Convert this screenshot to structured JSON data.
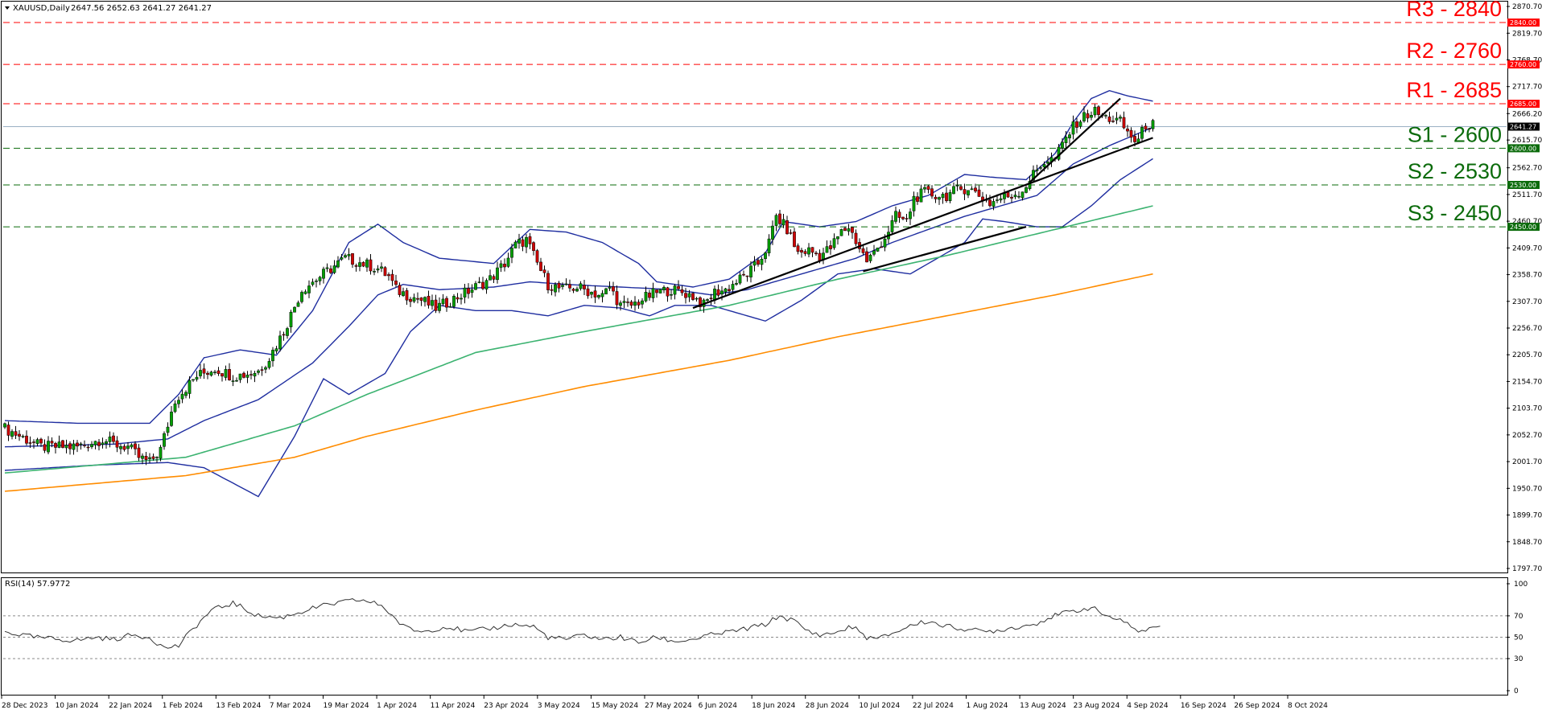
{
  "header": {
    "symbol": "XAUUSD,Daily",
    "ohlc": "2647.56 2652.63 2641.27 2641.27"
  },
  "rsi_header": "RSI(14) 57.9772",
  "colors": {
    "up_candle": "#00a000",
    "down_candle": "#d00000",
    "resistance": "#ff0000",
    "support": "#0b6b0b",
    "bollinger": "#1f2ea0",
    "ma_green": "#3cb371",
    "ma_orange": "#ff8c00",
    "trendline": "#000000",
    "rsi_line": "#333333"
  },
  "levels": [
    {
      "label": "R3 - 2840",
      "price": 2840,
      "tag": "2840.00",
      "kind": "resistance"
    },
    {
      "label": "R2 - 2760",
      "price": 2760,
      "tag": "2760.00",
      "kind": "resistance"
    },
    {
      "label": "R1 - 2685",
      "price": 2685,
      "tag": "2685.00",
      "kind": "resistance"
    },
    {
      "label": "S1 - 2600",
      "price": 2600,
      "tag": "2600.00",
      "kind": "support"
    },
    {
      "label": "S2 - 2530",
      "price": 2530,
      "tag": "2530.00",
      "kind": "support"
    },
    {
      "label": "S3 - 2450",
      "price": 2450,
      "tag": "2450.00",
      "kind": "support"
    }
  ],
  "current_price": {
    "price": 2641.27,
    "tag": "2641.27"
  },
  "chart_data": [
    {
      "type": "candlestick",
      "x_ticks": [
        "28 Dec 2023",
        "10 Jan 2024",
        "22 Jan 2024",
        "1 Feb 2024",
        "13 Feb 2024",
        "7 Mar 2024",
        "19 Mar 2024",
        "1 Apr 2024",
        "11 Apr 2024",
        "23 Apr 2024",
        "3 May 2024",
        "15 May 2024",
        "27 May 2024",
        "6 Jun 2024",
        "18 Jun 2024",
        "28 Jun 2024",
        "10 Jul 2024",
        "22 Jul 2024",
        "1 Aug 2024",
        "13 Aug 2024",
        "23 Aug 2024",
        "4 Sep 2024",
        "16 Sep 2024",
        "26 Sep 2024",
        "8 Oct 2024"
      ],
      "y_ticks": [
        "2870.70",
        "2819.70",
        "2768.70",
        "2717.70",
        "2666.20",
        "2615.70",
        "2562.70",
        "2511.70",
        "2460.70",
        "2409.70",
        "2358.70",
        "2307.70",
        "2256.70",
        "2205.70",
        "2154.70",
        "2103.70",
        "2052.70",
        "2001.70",
        "1950.70",
        "1899.70",
        "1848.70",
        "1797.70"
      ],
      "ylim": [
        1790,
        2880
      ],
      "close_anchors": [
        [
          0,
          2065
        ],
        [
          10,
          2030
        ],
        [
          20,
          2030
        ],
        [
          27,
          2045
        ],
        [
          30,
          2035
        ],
        [
          34,
          2030
        ],
        [
          37,
          2010
        ],
        [
          40,
          2000
        ],
        [
          43,
          2025
        ],
        [
          47,
          2120
        ],
        [
          53,
          2165
        ],
        [
          58,
          2180
        ],
        [
          63,
          2165
        ],
        [
          66,
          2168
        ],
        [
          70,
          2175
        ],
        [
          73,
          2200
        ],
        [
          77,
          2250
        ],
        [
          82,
          2330
        ],
        [
          86,
          2350
        ],
        [
          90,
          2370
        ],
        [
          94,
          2390
        ],
        [
          99,
          2380
        ],
        [
          103,
          2370
        ],
        [
          106,
          2355
        ],
        [
          108,
          2330
        ],
        [
          111,
          2320
        ],
        [
          115,
          2310
        ],
        [
          119,
          2295
        ],
        [
          122,
          2305
        ],
        [
          126,
          2320
        ],
        [
          130,
          2335
        ],
        [
          134,
          2350
        ],
        [
          138,
          2380
        ],
        [
          141,
          2415
        ],
        [
          144,
          2425
        ],
        [
          147,
          2380
        ],
        [
          150,
          2340
        ],
        [
          154,
          2330
        ],
        [
          158,
          2335
        ],
        [
          162,
          2325
        ],
        [
          165,
          2318
        ],
        [
          167,
          2335
        ],
        [
          170,
          2300
        ],
        [
          173,
          2300
        ],
        [
          177,
          2315
        ],
        [
          180,
          2325
        ],
        [
          184,
          2330
        ],
        [
          187,
          2325
        ],
        [
          190,
          2318
        ],
        [
          193,
          2300
        ],
        [
          196,
          2325
        ],
        [
          199,
          2330
        ],
        [
          202,
          2345
        ],
        [
          205,
          2360
        ],
        [
          208,
          2380
        ],
        [
          211,
          2420
        ],
        [
          213,
          2470
        ],
        [
          216,
          2445
        ],
        [
          219,
          2400
        ],
        [
          222,
          2405
        ],
        [
          225,
          2395
        ],
        [
          228,
          2410
        ],
        [
          231,
          2440
        ],
        [
          233,
          2450
        ],
        [
          236,
          2410
        ],
        [
          238,
          2385
        ],
        [
          240,
          2400
        ],
        [
          243,
          2430
        ],
        [
          246,
          2470
        ],
        [
          249,
          2460
        ],
        [
          251,
          2505
        ],
        [
          254,
          2515
        ],
        [
          257,
          2510
        ],
        [
          260,
          2510
        ],
        [
          263,
          2520
        ],
        [
          266,
          2525
        ],
        [
          269,
          2510
        ],
        [
          272,
          2495
        ],
        [
          275,
          2505
        ],
        [
          278,
          2510
        ],
        [
          281,
          2520
        ],
        [
          284,
          2550
        ],
        [
          287,
          2575
        ],
        [
          290,
          2580
        ],
        [
          293,
          2620
        ],
        [
          296,
          2650
        ],
        [
          299,
          2665
        ],
        [
          301,
          2670
        ],
        [
          303,
          2660
        ],
        [
          306,
          2655
        ],
        [
          308,
          2650
        ],
        [
          310,
          2630
        ],
        [
          312,
          2615
        ],
        [
          313,
          2615
        ],
        [
          315,
          2645
        ],
        [
          317,
          2645
        ]
      ],
      "bb_upper": [
        [
          0,
          2080
        ],
        [
          20,
          2075
        ],
        [
          40,
          2075
        ],
        [
          48,
          2130
        ],
        [
          55,
          2200
        ],
        [
          65,
          2215
        ],
        [
          75,
          2205
        ],
        [
          85,
          2290
        ],
        [
          95,
          2420
        ],
        [
          103,
          2455
        ],
        [
          110,
          2420
        ],
        [
          120,
          2390
        ],
        [
          135,
          2380
        ],
        [
          145,
          2445
        ],
        [
          155,
          2440
        ],
        [
          165,
          2420
        ],
        [
          175,
          2380
        ],
        [
          180,
          2345
        ],
        [
          190,
          2335
        ],
        [
          200,
          2350
        ],
        [
          210,
          2400
        ],
        [
          215,
          2460
        ],
        [
          225,
          2450
        ],
        [
          235,
          2460
        ],
        [
          245,
          2490
        ],
        [
          255,
          2510
        ],
        [
          265,
          2550
        ],
        [
          272,
          2545
        ],
        [
          282,
          2540
        ],
        [
          290,
          2590
        ],
        [
          295,
          2650
        ],
        [
          300,
          2695
        ],
        [
          305,
          2710
        ],
        [
          310,
          2700
        ],
        [
          317,
          2690
        ]
      ],
      "bb_middle": [
        [
          0,
          2030
        ],
        [
          30,
          2035
        ],
        [
          45,
          2045
        ],
        [
          55,
          2080
        ],
        [
          70,
          2120
        ],
        [
          85,
          2190
        ],
        [
          95,
          2260
        ],
        [
          103,
          2320
        ],
        [
          110,
          2340
        ],
        [
          120,
          2330
        ],
        [
          135,
          2335
        ],
        [
          145,
          2345
        ],
        [
          155,
          2340
        ],
        [
          170,
          2335
        ],
        [
          185,
          2330
        ],
        [
          195,
          2320
        ],
        [
          205,
          2330
        ],
        [
          215,
          2350
        ],
        [
          225,
          2370
        ],
        [
          235,
          2390
        ],
        [
          245,
          2420
        ],
        [
          255,
          2445
        ],
        [
          265,
          2470
        ],
        [
          275,
          2490
        ],
        [
          285,
          2510
        ],
        [
          295,
          2570
        ],
        [
          305,
          2605
        ],
        [
          317,
          2640
        ]
      ],
      "bb_lower": [
        [
          0,
          1985
        ],
        [
          25,
          1995
        ],
        [
          45,
          2000
        ],
        [
          55,
          1990
        ],
        [
          70,
          1935
        ],
        [
          80,
          2050
        ],
        [
          88,
          2160
        ],
        [
          95,
          2130
        ],
        [
          105,
          2170
        ],
        [
          112,
          2250
        ],
        [
          120,
          2300
        ],
        [
          130,
          2290
        ],
        [
          140,
          2290
        ],
        [
          150,
          2280
        ],
        [
          160,
          2300
        ],
        [
          170,
          2295
        ],
        [
          178,
          2280
        ],
        [
          185,
          2300
        ],
        [
          195,
          2300
        ],
        [
          210,
          2270
        ],
        [
          220,
          2310
        ],
        [
          230,
          2360
        ],
        [
          240,
          2370
        ],
        [
          250,
          2360
        ],
        [
          255,
          2380
        ],
        [
          265,
          2420
        ],
        [
          270,
          2465
        ],
        [
          276,
          2460
        ],
        [
          285,
          2450
        ],
        [
          292,
          2450
        ],
        [
          300,
          2490
        ],
        [
          308,
          2540
        ],
        [
          317,
          2580
        ]
      ],
      "ma_green": [
        [
          0,
          1980
        ],
        [
          50,
          2010
        ],
        [
          80,
          2070
        ],
        [
          100,
          2130
        ],
        [
          130,
          2210
        ],
        [
          160,
          2250
        ],
        [
          200,
          2300
        ],
        [
          230,
          2350
        ],
        [
          260,
          2395
        ],
        [
          290,
          2445
        ],
        [
          317,
          2490
        ]
      ],
      "ma_orange": [
        [
          0,
          1945
        ],
        [
          50,
          1975
        ],
        [
          80,
          2010
        ],
        [
          100,
          2050
        ],
        [
          130,
          2100
        ],
        [
          160,
          2145
        ],
        [
          200,
          2195
        ],
        [
          230,
          2240
        ],
        [
          260,
          2280
        ],
        [
          290,
          2320
        ],
        [
          317,
          2360
        ]
      ],
      "trendlines": [
        [
          [
            190,
            2295
          ],
          [
            317,
            2620
          ]
        ],
        [
          [
            237,
            2365
          ],
          [
            282,
            2450
          ]
        ],
        [
          [
            283,
            2535
          ],
          [
            308,
            2695
          ]
        ]
      ]
    },
    {
      "type": "line",
      "title": "RSI(14) 57.9772",
      "y_ticks": [
        "100",
        "70",
        "50",
        "30",
        "0"
      ],
      "ylim": [
        0,
        100
      ],
      "levels": [
        70,
        50,
        30
      ],
      "values_anchors": [
        [
          0,
          55
        ],
        [
          8,
          50
        ],
        [
          15,
          48
        ],
        [
          20,
          47
        ],
        [
          25,
          50
        ],
        [
          30,
          48
        ],
        [
          35,
          52
        ],
        [
          40,
          50
        ],
        [
          44,
          40
        ],
        [
          48,
          42
        ],
        [
          52,
          58
        ],
        [
          57,
          75
        ],
        [
          63,
          82
        ],
        [
          70,
          70
        ],
        [
          76,
          68
        ],
        [
          80,
          72
        ],
        [
          86,
          78
        ],
        [
          92,
          82
        ],
        [
          98,
          85
        ],
        [
          104,
          80
        ],
        [
          110,
          60
        ],
        [
          115,
          55
        ],
        [
          122,
          60
        ],
        [
          128,
          55
        ],
        [
          134,
          58
        ],
        [
          140,
          62
        ],
        [
          146,
          60
        ],
        [
          150,
          50
        ],
        [
          155,
          48
        ],
        [
          160,
          52
        ],
        [
          165,
          48
        ],
        [
          170,
          50
        ],
        [
          175,
          45
        ],
        [
          180,
          50
        ],
        [
          185,
          46
        ],
        [
          190,
          48
        ],
        [
          195,
          52
        ],
        [
          200,
          55
        ],
        [
          205,
          58
        ],
        [
          210,
          62
        ],
        [
          214,
          70
        ],
        [
          218,
          65
        ],
        [
          222,
          55
        ],
        [
          226,
          52
        ],
        [
          230,
          55
        ],
        [
          234,
          60
        ],
        [
          238,
          50
        ],
        [
          241,
          48
        ],
        [
          246,
          55
        ],
        [
          251,
          62
        ],
        [
          255,
          65
        ],
        [
          260,
          60
        ],
        [
          265,
          58
        ],
        [
          270,
          55
        ],
        [
          275,
          57
        ],
        [
          280,
          60
        ],
        [
          284,
          62
        ],
        [
          288,
          68
        ],
        [
          292,
          72
        ],
        [
          296,
          75
        ],
        [
          300,
          78
        ],
        [
          303,
          72
        ],
        [
          306,
          68
        ],
        [
          310,
          62
        ],
        [
          314,
          55
        ],
        [
          317,
          60
        ],
        [
          319,
          57.98
        ]
      ]
    }
  ]
}
